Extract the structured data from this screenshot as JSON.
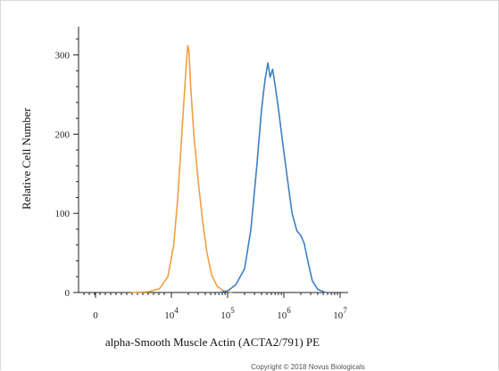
{
  "chart_data": {
    "type": "line",
    "title": "",
    "xlabel": "alpha-Smooth Muscle Actin (ACTA2/791) PE",
    "ylabel": "Relative Cell Number",
    "x_scale": "log",
    "x_ticks": [
      {
        "base": "0",
        "exp": ""
      },
      {
        "base": "10",
        "exp": "4"
      },
      {
        "base": "10",
        "exp": "5"
      },
      {
        "base": "10",
        "exp": "6"
      },
      {
        "base": "10",
        "exp": "7"
      }
    ],
    "y_ticks": [
      "0",
      "100",
      "200",
      "300"
    ],
    "ylim": [
      0,
      330
    ],
    "series": [
      {
        "color": "#f0a040",
        "points": [
          [
            3000,
            0
          ],
          [
            5000,
            1
          ],
          [
            7000,
            5
          ],
          [
            9000,
            20
          ],
          [
            11000,
            60
          ],
          [
            13000,
            120
          ],
          [
            15000,
            190
          ],
          [
            17000,
            250
          ],
          [
            18500,
            290
          ],
          [
            19500,
            312
          ],
          [
            20500,
            305
          ],
          [
            22000,
            260
          ],
          [
            25000,
            200
          ],
          [
            30000,
            140
          ],
          [
            36000,
            90
          ],
          [
            43000,
            50
          ],
          [
            52000,
            22
          ],
          [
            65000,
            8
          ],
          [
            85000,
            2
          ],
          [
            120000,
            0
          ]
        ]
      },
      {
        "color": "#3d7fc4",
        "points": [
          [
            70000,
            0
          ],
          [
            100000,
            2
          ],
          [
            140000,
            10
          ],
          [
            200000,
            30
          ],
          [
            260000,
            80
          ],
          [
            330000,
            160
          ],
          [
            400000,
            230
          ],
          [
            460000,
            268
          ],
          [
            520000,
            290
          ],
          [
            570000,
            272
          ],
          [
            630000,
            282
          ],
          [
            700000,
            262
          ],
          [
            800000,
            232
          ],
          [
            950000,
            190
          ],
          [
            1150000,
            145
          ],
          [
            1400000,
            100
          ],
          [
            1700000,
            78
          ],
          [
            2000000,
            72
          ],
          [
            2300000,
            62
          ],
          [
            2700000,
            38
          ],
          [
            3200000,
            15
          ],
          [
            4000000,
            4
          ],
          [
            5500000,
            0
          ]
        ]
      }
    ]
  },
  "footer": {
    "copyright": "Copyright © 2018 Novus Biologicals"
  }
}
